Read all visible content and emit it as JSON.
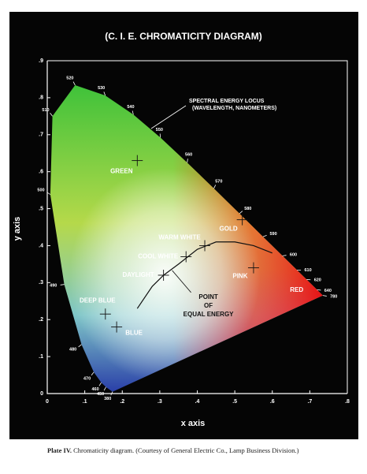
{
  "chart_data": {
    "type": "chromaticity",
    "title": "(C. I. E. CHROMATICITY DIAGRAM)",
    "x_label": "x axis",
    "y_label": "y axis",
    "xlim": [
      0,
      0.8
    ],
    "ylim": [
      0,
      0.9
    ],
    "xticks": [
      0,
      {
        "value": 0.1,
        "label": ".1"
      },
      {
        "value": 0.2,
        "label": ".2"
      },
      {
        "value": 0.3,
        "label": ".3"
      },
      {
        "value": 0.4,
        "label": ".4"
      },
      {
        "value": 0.5,
        "label": ".5"
      },
      {
        "value": 0.6,
        "label": ".6"
      },
      {
        "value": 0.7,
        "label": ".7"
      },
      {
        "value": 0.8,
        "label": ".8"
      }
    ],
    "yticks": [
      0,
      {
        "value": 0.1,
        "label": ".1"
      },
      {
        "value": 0.2,
        "label": ".2"
      },
      {
        "value": 0.3,
        "label": ".3"
      },
      {
        "value": 0.4,
        "label": ".4"
      },
      {
        "value": 0.5,
        "label": ".5"
      },
      {
        "value": 0.6,
        "label": ".6"
      },
      {
        "value": 0.7,
        "label": ".7"
      },
      {
        "value": 0.8,
        "label": ".8"
      },
      {
        "value": 0.9,
        "label": ".9"
      }
    ],
    "locus": {
      "wavelengths": [
        380,
        450,
        460,
        470,
        480,
        490,
        500,
        510,
        520,
        530,
        540,
        550,
        560,
        570,
        580,
        590,
        600,
        610,
        620,
        640,
        780
      ],
      "x": [
        0.1741,
        0.1566,
        0.144,
        0.1241,
        0.0913,
        0.0454,
        0.0082,
        0.0139,
        0.0743,
        0.1547,
        0.2296,
        0.3016,
        0.3731,
        0.4441,
        0.5125,
        0.5752,
        0.627,
        0.6658,
        0.6915,
        0.719,
        0.7347
      ],
      "y": [
        0.005,
        0.0177,
        0.0297,
        0.0578,
        0.1327,
        0.295,
        0.5384,
        0.7502,
        0.8338,
        0.8059,
        0.7543,
        0.6923,
        0.6245,
        0.5547,
        0.4866,
        0.4242,
        0.3725,
        0.334,
        0.3083,
        0.2809,
        0.2653
      ]
    },
    "locus_annotation": [
      "SPECTRAL ENERGY LOCUS",
      "(WAVELENGTH, NANOMETERS)"
    ],
    "planckian_locus": {
      "x": [
        0.24,
        0.28,
        0.31,
        0.35,
        0.4,
        0.45,
        0.5,
        0.55,
        0.6
      ],
      "y": [
        0.23,
        0.29,
        0.32,
        0.35,
        0.39,
        0.41,
        0.41,
        0.4,
        0.38
      ]
    },
    "points": [
      {
        "label": [
          "GREEN"
        ],
        "x": 0.24,
        "y": 0.63,
        "marker": true
      },
      {
        "label": [
          "GOLD"
        ],
        "x": 0.52,
        "y": 0.47,
        "marker": true
      },
      {
        "label": [
          "WARM WHITE"
        ],
        "x": 0.42,
        "y": 0.4,
        "marker": true
      },
      {
        "label": [
          "COOL WHITE"
        ],
        "x": 0.37,
        "y": 0.37,
        "marker": true
      },
      {
        "label": [
          "DAYLIGHT"
        ],
        "x": 0.31,
        "y": 0.32,
        "marker": true
      },
      {
        "label": [
          "POINT",
          "OF",
          "EQUAL ENERGY"
        ],
        "x": 0.333,
        "y": 0.333,
        "marker": false
      },
      {
        "label": [
          "PINK"
        ],
        "x": 0.55,
        "y": 0.34,
        "marker": true
      },
      {
        "label": [
          "RED"
        ],
        "x": 0.665,
        "y": 0.28,
        "marker": false
      },
      {
        "label": [
          "DEEP BLUE"
        ],
        "x": 0.155,
        "y": 0.215,
        "marker": true
      },
      {
        "label": [
          "BLUE"
        ],
        "x": 0.185,
        "y": 0.18,
        "marker": true
      }
    ],
    "caption": {
      "label": "Plate IV.",
      "text": "Chromaticity diagram. (Courtesy of General Electric Co., Lamp Business Division.)"
    }
  }
}
